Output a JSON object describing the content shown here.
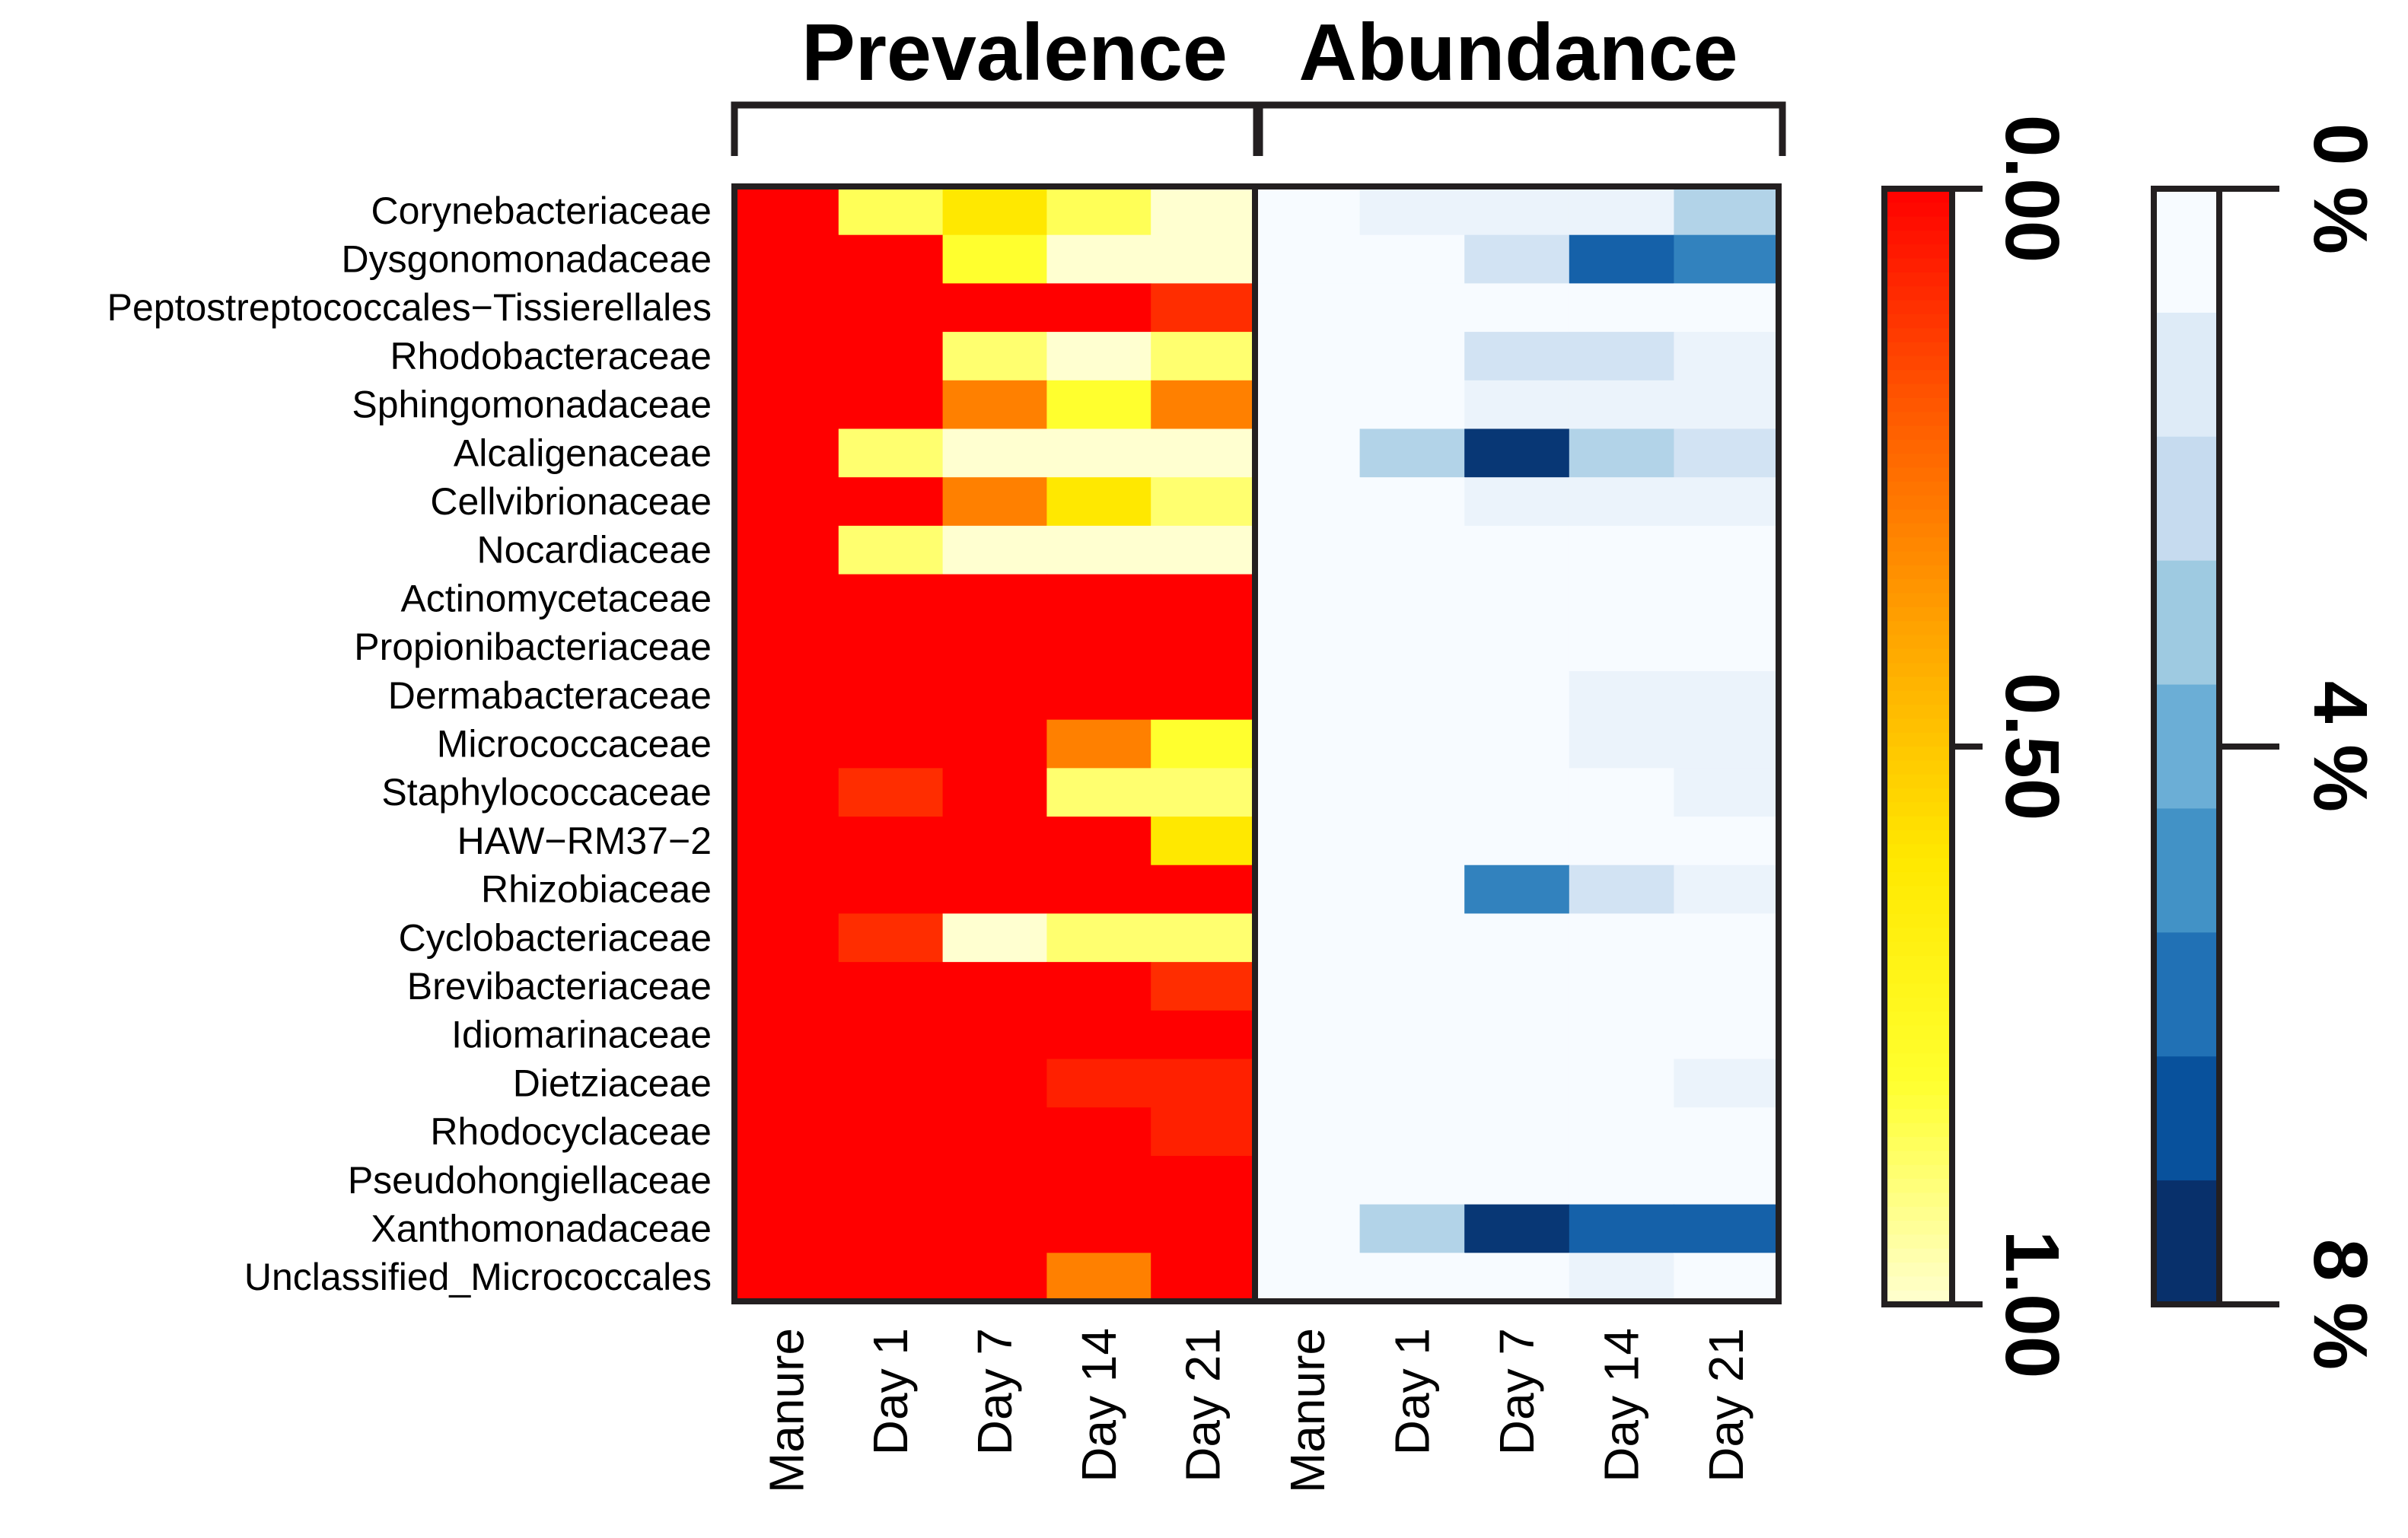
{
  "chart_data": {
    "type": "heatmap",
    "panels": [
      {
        "name": "prevalence",
        "title": "Prevalence"
      },
      {
        "name": "abundance",
        "title": "Abundance"
      }
    ],
    "columns": [
      "Manure",
      "Day 1",
      "Day 7",
      "Day 14",
      "Day 21"
    ],
    "rows": [
      "Corynebacteriaceae",
      "Dysgonomonadaceae",
      "Peptostreptococcales−Tissierellales",
      "Rhodobacteraceae",
      "Sphingomonadaceae",
      "Alcaligenaceae",
      "Cellvibrionaceae",
      "Nocardiaceae",
      "Actinomycetaceae",
      "Propionibacteriaceae",
      "Dermabacteraceae",
      "Micrococcaceae",
      "Staphylococcaceae",
      "HAW−RM37−2",
      "Rhizobiaceae",
      "Cyclobacteriaceae",
      "Brevibacteriaceae",
      "Idiomarinaceae",
      "Dietziaceae",
      "Rhodocyclaceae",
      "Pseudohongiellaceae",
      "Xanthomonadaceae",
      "Unclassified_Micrococcales"
    ],
    "prevalence": [
      [
        0.0,
        0.85,
        0.6,
        0.85,
        1.0
      ],
      [
        0.0,
        0.0,
        0.8,
        1.0,
        1.0
      ],
      [
        0.0,
        0.0,
        0.0,
        0.0,
        0.1
      ],
      [
        0.0,
        0.0,
        0.88,
        1.0,
        0.88
      ],
      [
        0.0,
        0.0,
        0.3,
        0.8,
        0.3
      ],
      [
        0.0,
        0.88,
        1.0,
        1.0,
        1.0
      ],
      [
        0.0,
        0.0,
        0.3,
        0.6,
        0.88
      ],
      [
        0.0,
        0.88,
        1.0,
        1.0,
        1.0
      ],
      [
        0.0,
        0.0,
        0.0,
        0.0,
        0.0
      ],
      [
        0.0,
        0.0,
        0.0,
        0.0,
        0.0
      ],
      [
        0.0,
        0.0,
        0.0,
        0.0,
        0.0
      ],
      [
        0.0,
        0.0,
        0.0,
        0.3,
        0.8
      ],
      [
        0.0,
        0.1,
        0.0,
        0.88,
        0.88
      ],
      [
        0.0,
        0.0,
        0.0,
        0.0,
        0.6
      ],
      [
        0.0,
        0.0,
        0.0,
        0.0,
        0.0
      ],
      [
        0.0,
        0.1,
        1.0,
        0.88,
        0.88
      ],
      [
        0.0,
        0.0,
        0.0,
        0.0,
        0.1
      ],
      [
        0.0,
        0.0,
        0.0,
        0.0,
        0.0
      ],
      [
        0.0,
        0.0,
        0.0,
        0.07,
        0.07
      ],
      [
        0.0,
        0.0,
        0.0,
        0.0,
        0.07
      ],
      [
        0.0,
        0.0,
        0.0,
        0.0,
        0.0
      ],
      [
        0.0,
        0.0,
        0.0,
        0.0,
        0.0
      ],
      [
        0.0,
        0.0,
        0.0,
        0.3,
        0.0
      ]
    ],
    "abundance": [
      [
        0.0,
        0.5,
        0.5,
        0.5,
        2.5
      ],
      [
        0.0,
        0.0,
        1.5,
        6.5,
        5.5
      ],
      [
        0.0,
        0.0,
        0.0,
        0.0,
        0.0
      ],
      [
        0.0,
        0.0,
        1.5,
        1.5,
        0.5
      ],
      [
        0.0,
        0.0,
        0.5,
        0.5,
        0.5
      ],
      [
        0.0,
        2.5,
        7.8,
        2.5,
        1.5
      ],
      [
        0.0,
        0.0,
        0.5,
        0.5,
        0.5
      ],
      [
        0.0,
        0.0,
        0.0,
        0.0,
        0.0
      ],
      [
        0.0,
        0.0,
        0.0,
        0.0,
        0.0
      ],
      [
        0.0,
        0.0,
        0.0,
        0.0,
        0.0
      ],
      [
        0.0,
        0.0,
        0.0,
        0.5,
        0.5
      ],
      [
        0.0,
        0.0,
        0.0,
        0.5,
        0.5
      ],
      [
        0.0,
        0.0,
        0.0,
        0.0,
        0.5
      ],
      [
        0.0,
        0.0,
        0.0,
        0.0,
        0.0
      ],
      [
        0.0,
        0.0,
        5.5,
        1.5,
        0.5
      ],
      [
        0.0,
        0.0,
        0.0,
        0.0,
        0.0
      ],
      [
        0.0,
        0.0,
        0.0,
        0.0,
        0.0
      ],
      [
        0.0,
        0.0,
        0.0,
        0.0,
        0.0
      ],
      [
        0.0,
        0.0,
        0.0,
        0.0,
        0.5
      ],
      [
        0.0,
        0.0,
        0.0,
        0.0,
        0.0
      ],
      [
        0.0,
        0.0,
        0.0,
        0.0,
        0.0
      ],
      [
        0.0,
        2.5,
        7.8,
        6.5,
        6.5
      ],
      [
        0.0,
        0.0,
        0.0,
        0.5,
        0.0
      ]
    ],
    "prevalence_scale": {
      "range": [
        0,
        1
      ],
      "ticks": [
        "0.00",
        "0.50",
        "1.00"
      ],
      "colors": [
        "#ff0000",
        "#ff5a00",
        "#ffa500",
        "#ffe800",
        "#ffff2e",
        "#ffffd0"
      ]
    },
    "abundance_scale": {
      "range": [
        0,
        8
      ],
      "ticks": [
        "0 %",
        "4 %",
        "8 %"
      ],
      "colors": [
        "#f7fbff",
        "#deebf7",
        "#c6dbef",
        "#9ecae1",
        "#6baed6",
        "#4292c6",
        "#2171b5",
        "#08519c",
        "#08306b"
      ]
    }
  }
}
